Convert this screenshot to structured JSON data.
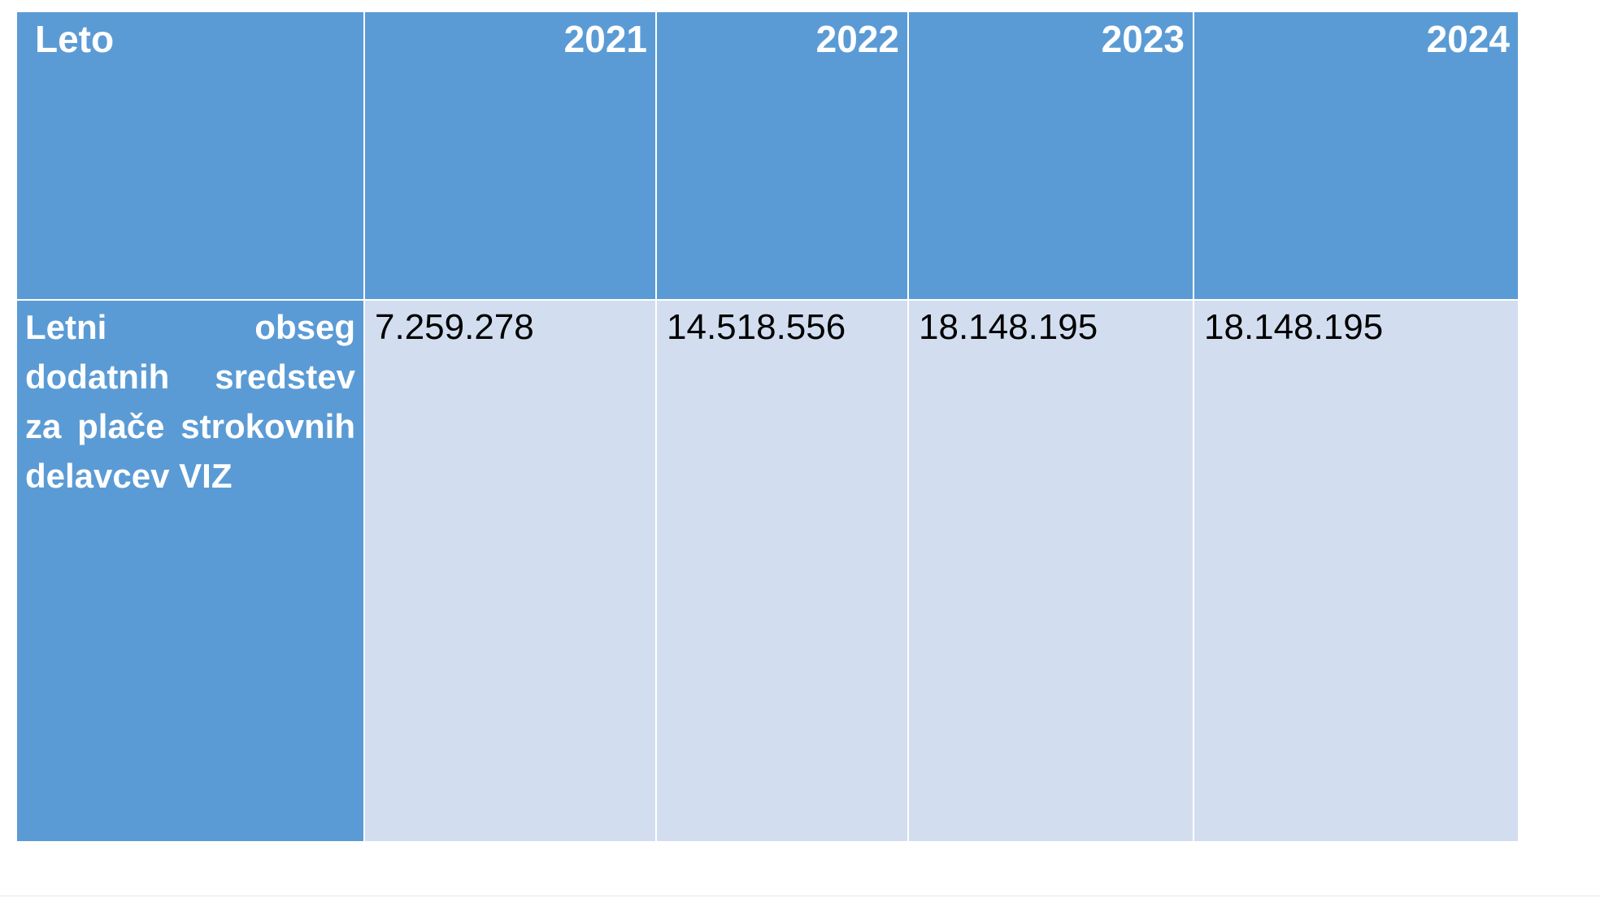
{
  "table": {
    "header": [
      "Leto",
      "2021",
      "2022",
      "2023",
      "2024"
    ],
    "rows": [
      [
        "Letni obseg dodatnih sredstev za plače strokovnih delavcev VIZ",
        "7.259.278",
        "14.518.556",
        "18.148.195",
        "18.148.195"
      ]
    ]
  }
}
